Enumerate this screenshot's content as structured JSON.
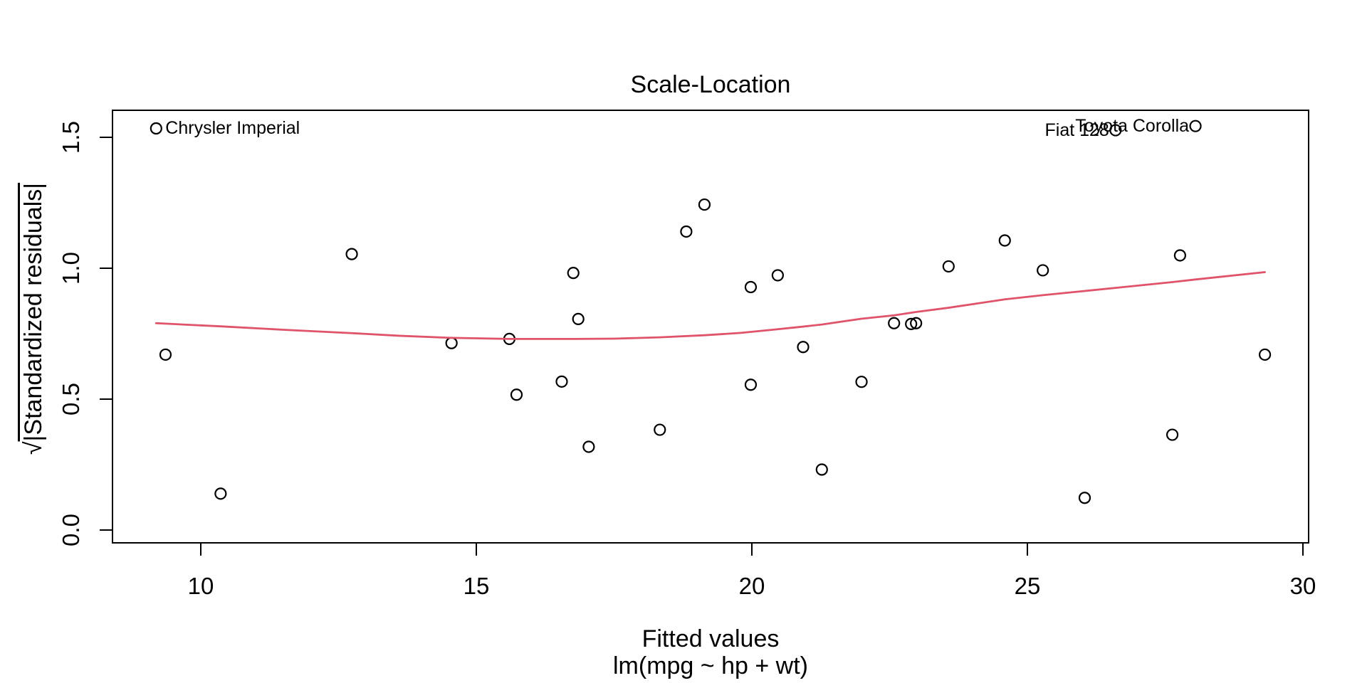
{
  "figure": {
    "ylabel_prefix": "√",
    "ylabel_body": "|Standardized residuals|"
  },
  "chart_data": {
    "type": "scatter",
    "title": "Scale-Location",
    "xlabel": "Fitted values",
    "xlabel2": "lm(mpg ~ hp + wt)",
    "ylabel": "√|Standardized residuals|",
    "xlim": [
      8.4,
      30.1
    ],
    "ylim": [
      -0.05,
      1.6
    ],
    "x_ticks": [
      "10",
      "15",
      "20",
      "25",
      "30"
    ],
    "y_ticks": [
      "0.0",
      "0.5",
      "1.0",
      "1.5"
    ],
    "grid": "off",
    "colors": {
      "points": "#000000",
      "smooth": "#DF536B",
      "text": "#000000"
    },
    "points": [
      [
        9.36,
        0.67
      ],
      [
        10.36,
        0.139
      ],
      [
        12.74,
        1.054
      ],
      [
        14.55,
        0.714
      ],
      [
        15.6,
        0.73
      ],
      [
        15.73,
        0.517
      ],
      [
        16.55,
        0.567
      ],
      [
        16.76,
        0.982
      ],
      [
        16.85,
        0.806
      ],
      [
        17.04,
        0.318
      ],
      [
        18.33,
        0.383
      ],
      [
        18.81,
        1.14
      ],
      [
        19.14,
        1.243
      ],
      [
        19.98,
        0.555
      ],
      [
        19.98,
        0.928
      ],
      [
        20.47,
        0.973
      ],
      [
        20.93,
        0.699
      ],
      [
        21.27,
        0.231
      ],
      [
        21.99,
        0.566
      ],
      [
        22.58,
        0.79
      ],
      [
        22.89,
        0.787
      ],
      [
        22.98,
        0.79
      ],
      [
        23.57,
        1.007
      ],
      [
        24.59,
        1.106
      ],
      [
        25.28,
        0.992
      ],
      [
        26.04,
        0.123
      ],
      [
        27.63,
        0.364
      ],
      [
        27.77,
        1.049
      ],
      [
        29.31,
        0.67
      ]
    ],
    "labeled_points": [
      {
        "label": "Chrysler Imperial",
        "x": 9.19,
        "y": 1.534,
        "side": "right"
      },
      {
        "label": "Fiat 128",
        "x": 26.6,
        "y": 1.527,
        "side": "left"
      },
      {
        "label": "Toyota Corolla",
        "x": 28.05,
        "y": 1.543,
        "side": "left"
      }
    ],
    "smooth_line": [
      [
        9.19,
        0.79
      ],
      [
        10.36,
        0.778
      ],
      [
        11.5,
        0.765
      ],
      [
        12.74,
        0.752
      ],
      [
        13.6,
        0.742
      ],
      [
        14.55,
        0.734
      ],
      [
        15.6,
        0.73
      ],
      [
        16.8,
        0.73
      ],
      [
        17.5,
        0.731
      ],
      [
        18.33,
        0.736
      ],
      [
        19.14,
        0.744
      ],
      [
        19.8,
        0.753
      ],
      [
        20.47,
        0.767
      ],
      [
        20.93,
        0.777
      ],
      [
        21.27,
        0.785
      ],
      [
        21.99,
        0.807
      ],
      [
        22.58,
        0.82
      ],
      [
        22.98,
        0.833
      ],
      [
        23.57,
        0.849
      ],
      [
        24.59,
        0.881
      ],
      [
        25.28,
        0.897
      ],
      [
        26.04,
        0.913
      ],
      [
        26.6,
        0.925
      ],
      [
        27.63,
        0.947
      ],
      [
        28.05,
        0.957
      ],
      [
        29.31,
        0.985
      ]
    ]
  }
}
